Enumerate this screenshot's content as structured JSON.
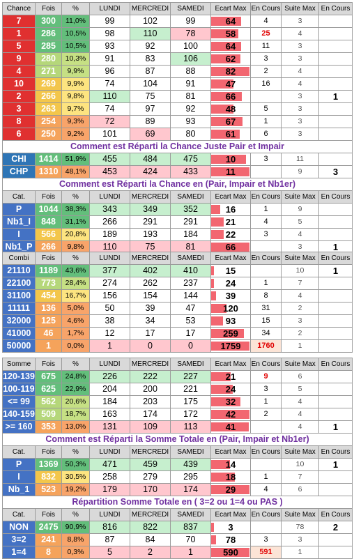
{
  "colors": {
    "blue": "#4472c4",
    "red": "#e03030",
    "teal": "#2e75b6"
  },
  "block1": {
    "header": [
      "Chance",
      "Fois",
      "%",
      "LUNDI",
      "MERCREDI",
      "SAMEDI",
      "Ecart Max",
      "En Cours",
      "Suite Max",
      "En Cours"
    ],
    "rows": [
      {
        "label": "7",
        "fois": "300",
        "pct": "11,0%",
        "lun": "99",
        "mer": "102",
        "sam": "99",
        "ecart": "64",
        "cours": "4",
        "suite": "3",
        "cours2": ""
      },
      {
        "label": "1",
        "fois": "286",
        "pct": "10,5%",
        "lun": "98",
        "mer": "110",
        "sam": "78",
        "ecart": "58",
        "cours": "25",
        "suite": "4",
        "cours2": ""
      },
      {
        "label": "5",
        "fois": "285",
        "pct": "10,5%",
        "lun": "93",
        "mer": "92",
        "sam": "100",
        "ecart": "64",
        "cours": "11",
        "suite": "3",
        "cours2": ""
      },
      {
        "label": "9",
        "fois": "280",
        "pct": "10,3%",
        "lun": "91",
        "mer": "83",
        "sam": "106",
        "ecart": "62",
        "cours": "3",
        "suite": "3",
        "cours2": ""
      },
      {
        "label": "4",
        "fois": "271",
        "pct": "9,9%",
        "lun": "96",
        "mer": "87",
        "sam": "88",
        "ecart": "82",
        "cours": "2",
        "suite": "4",
        "cours2": ""
      },
      {
        "label": "10",
        "fois": "269",
        "pct": "9,9%",
        "lun": "74",
        "mer": "104",
        "sam": "91",
        "ecart": "47",
        "cours": "16",
        "suite": "4",
        "cours2": ""
      },
      {
        "label": "2",
        "fois": "266",
        "pct": "9,8%",
        "lun": "110",
        "mer": "75",
        "sam": "81",
        "ecart": "66",
        "cours": "",
        "suite": "3",
        "cours2": "1"
      },
      {
        "label": "3",
        "fois": "263",
        "pct": "9,7%",
        "lun": "74",
        "mer": "97",
        "sam": "92",
        "ecart": "48",
        "cours": "5",
        "suite": "3",
        "cours2": ""
      },
      {
        "label": "8",
        "fois": "254",
        "pct": "9,3%",
        "lun": "72",
        "mer": "89",
        "sam": "93",
        "ecart": "67",
        "cours": "1",
        "suite": "3",
        "cours2": ""
      },
      {
        "label": "6",
        "fois": "250",
        "pct": "9,2%",
        "lun": "101",
        "mer": "69",
        "sam": "80",
        "ecart": "61",
        "cours": "6",
        "suite": "3",
        "cours2": ""
      }
    ],
    "title": "Comment est Réparti la Chance Juste Pair et Impair",
    "rows2": [
      {
        "label": "CHI",
        "fois": "1414",
        "pct": "51,9%",
        "lun": "455",
        "mer": "484",
        "sam": "475",
        "ecart": "10",
        "cours": "3",
        "suite": "11",
        "cours2": ""
      },
      {
        "label": "CHP",
        "fois": "1310",
        "pct": "48,1%",
        "lun": "453",
        "mer": "424",
        "sam": "433",
        "ecart": "11",
        "cours": "",
        "suite": "9",
        "cours2": "3"
      }
    ],
    "title2": "Comment est Réparti la Chance en (Pair, Impair et Nb1er)",
    "header3": [
      "Cat.",
      "Fois",
      "%",
      "LUNDI",
      "MERCREDI",
      "SAMEDI",
      "Ecart Max",
      "En Cours",
      "Suite Max",
      "En Cours"
    ],
    "rows3": [
      {
        "label": "P",
        "fois": "1044",
        "pct": "38,3%",
        "lun": "343",
        "mer": "349",
        "sam": "352",
        "ecart": "16",
        "cours": "1",
        "suite": "9",
        "cours2": ""
      },
      {
        "label": "Nb1_I",
        "fois": "848",
        "pct": "31,1%",
        "lun": "266",
        "mer": "291",
        "sam": "291",
        "ecart": "21",
        "cours": "4",
        "suite": "5",
        "cours2": ""
      },
      {
        "label": "I",
        "fois": "566",
        "pct": "20,8%",
        "lun": "189",
        "mer": "193",
        "sam": "184",
        "ecart": "22",
        "cours": "3",
        "suite": "4",
        "cours2": ""
      },
      {
        "label": "Nb1_P",
        "fois": "266",
        "pct": "9,8%",
        "lun": "110",
        "mer": "75",
        "sam": "81",
        "ecart": "66",
        "cours": "",
        "suite": "3",
        "cours2": "1"
      }
    ]
  },
  "block2": {
    "header": [
      "Combi",
      "Fois",
      "%",
      "LUNDI",
      "MERCREDI",
      "SAMEDI",
      "Ecart Max",
      "En Cours",
      "Suite Max",
      "En Cours"
    ],
    "rows": [
      {
        "label": "21110",
        "fois": "1189",
        "pct": "43,6%",
        "lun": "377",
        "mer": "402",
        "sam": "410",
        "ecart": "15",
        "cours": "",
        "suite": "10",
        "cours2": "1"
      },
      {
        "label": "22100",
        "fois": "773",
        "pct": "28,4%",
        "lun": "274",
        "mer": "262",
        "sam": "237",
        "ecart": "24",
        "cours": "1",
        "suite": "7",
        "cours2": ""
      },
      {
        "label": "31100",
        "fois": "454",
        "pct": "16,7%",
        "lun": "156",
        "mer": "154",
        "sam": "144",
        "ecart": "39",
        "cours": "8",
        "suite": "4",
        "cours2": ""
      },
      {
        "label": "11111",
        "fois": "136",
        "pct": "5,0%",
        "lun": "50",
        "mer": "39",
        "sam": "47",
        "ecart": "120",
        "cours": "31",
        "suite": "2",
        "cours2": ""
      },
      {
        "label": "32000",
        "fois": "125",
        "pct": "4,6%",
        "lun": "38",
        "mer": "34",
        "sam": "53",
        "ecart": "93",
        "cours": "15",
        "suite": "3",
        "cours2": ""
      },
      {
        "label": "41000",
        "fois": "46",
        "pct": "1,7%",
        "lun": "12",
        "mer": "17",
        "sam": "17",
        "ecart": "259",
        "cours": "34",
        "suite": "2",
        "cours2": ""
      },
      {
        "label": "50000",
        "fois": "1",
        "pct": "0,0%",
        "lun": "1",
        "mer": "0",
        "sam": "0",
        "ecart": "1759",
        "cours": "1760",
        "suite": "1",
        "cours2": ""
      }
    ]
  },
  "block3": {
    "header": [
      "Somme",
      "Fois",
      "%",
      "LUNDI",
      "MERCREDI",
      "SAMEDI",
      "Ecart Max",
      "En Cours",
      "Suite Max",
      "En Cours"
    ],
    "rows": [
      {
        "label": "120-139",
        "fois": "675",
        "pct": "24,8%",
        "lun": "226",
        "mer": "222",
        "sam": "227",
        "ecart": "21",
        "cours": "9",
        "suite": "6",
        "cours2": ""
      },
      {
        "label": "100-119",
        "fois": "625",
        "pct": "22,9%",
        "lun": "204",
        "mer": "200",
        "sam": "221",
        "ecart": "24",
        "cours": "3",
        "suite": "5",
        "cours2": ""
      },
      {
        "label": "<= 99",
        "fois": "562",
        "pct": "20,6%",
        "lun": "184",
        "mer": "203",
        "sam": "175",
        "ecart": "32",
        "cours": "1",
        "suite": "4",
        "cours2": ""
      },
      {
        "label": "140-159",
        "fois": "509",
        "pct": "18,7%",
        "lun": "163",
        "mer": "174",
        "sam": "172",
        "ecart": "42",
        "cours": "2",
        "suite": "4",
        "cours2": ""
      },
      {
        "label": ">= 160",
        "fois": "353",
        "pct": "13,0%",
        "lun": "131",
        "mer": "109",
        "sam": "113",
        "ecart": "41",
        "cours": "",
        "suite": "4",
        "cours2": "1"
      }
    ],
    "title": "Comment est Réparti la Somme Totale en (Pair, Impair et Nb1er)",
    "header2": [
      "Cat.",
      "Fois",
      "%",
      "LUNDI",
      "MERCREDI",
      "SAMEDI",
      "Ecart Max",
      "En Cours",
      "Suite Max",
      "En Cours"
    ],
    "rows2": [
      {
        "label": "P",
        "fois": "1369",
        "pct": "50,3%",
        "lun": "471",
        "mer": "459",
        "sam": "439",
        "ecart": "14",
        "cours": "",
        "suite": "10",
        "cours2": "1"
      },
      {
        "label": "I",
        "fois": "832",
        "pct": "30,5%",
        "lun": "258",
        "mer": "279",
        "sam": "295",
        "ecart": "18",
        "cours": "1",
        "suite": "7",
        "cours2": ""
      },
      {
        "label": "Nb_1",
        "fois": "523",
        "pct": "19,2%",
        "lun": "179",
        "mer": "170",
        "sam": "174",
        "ecart": "29",
        "cours": "4",
        "suite": "6",
        "cours2": ""
      }
    ],
    "title2": "Répartition Somme Totale en ( 3=2 ou 1=4 ou PAS )",
    "header3": [
      "Cat.",
      "Fois",
      "%",
      "LUNDI",
      "MERCREDI",
      "SAMEDI",
      "Ecart Max",
      "En Cours",
      "Suite Max",
      "En Cours"
    ],
    "rows3": [
      {
        "label": "NON",
        "fois": "2475",
        "pct": "90,9%",
        "lun": "816",
        "mer": "822",
        "sam": "837",
        "ecart": "3",
        "cours": "",
        "suite": "78",
        "cours2": "2"
      },
      {
        "label": "3=2",
        "fois": "241",
        "pct": "8,8%",
        "lun": "87",
        "mer": "84",
        "sam": "70",
        "ecart": "78",
        "cours": "3",
        "suite": "3",
        "cours2": ""
      },
      {
        "label": "1=4",
        "fois": "8",
        "pct": "0,3%",
        "lun": "5",
        "mer": "2",
        "sam": "1",
        "ecart": "590",
        "cours": "591",
        "suite": "1",
        "cours2": ""
      }
    ]
  }
}
